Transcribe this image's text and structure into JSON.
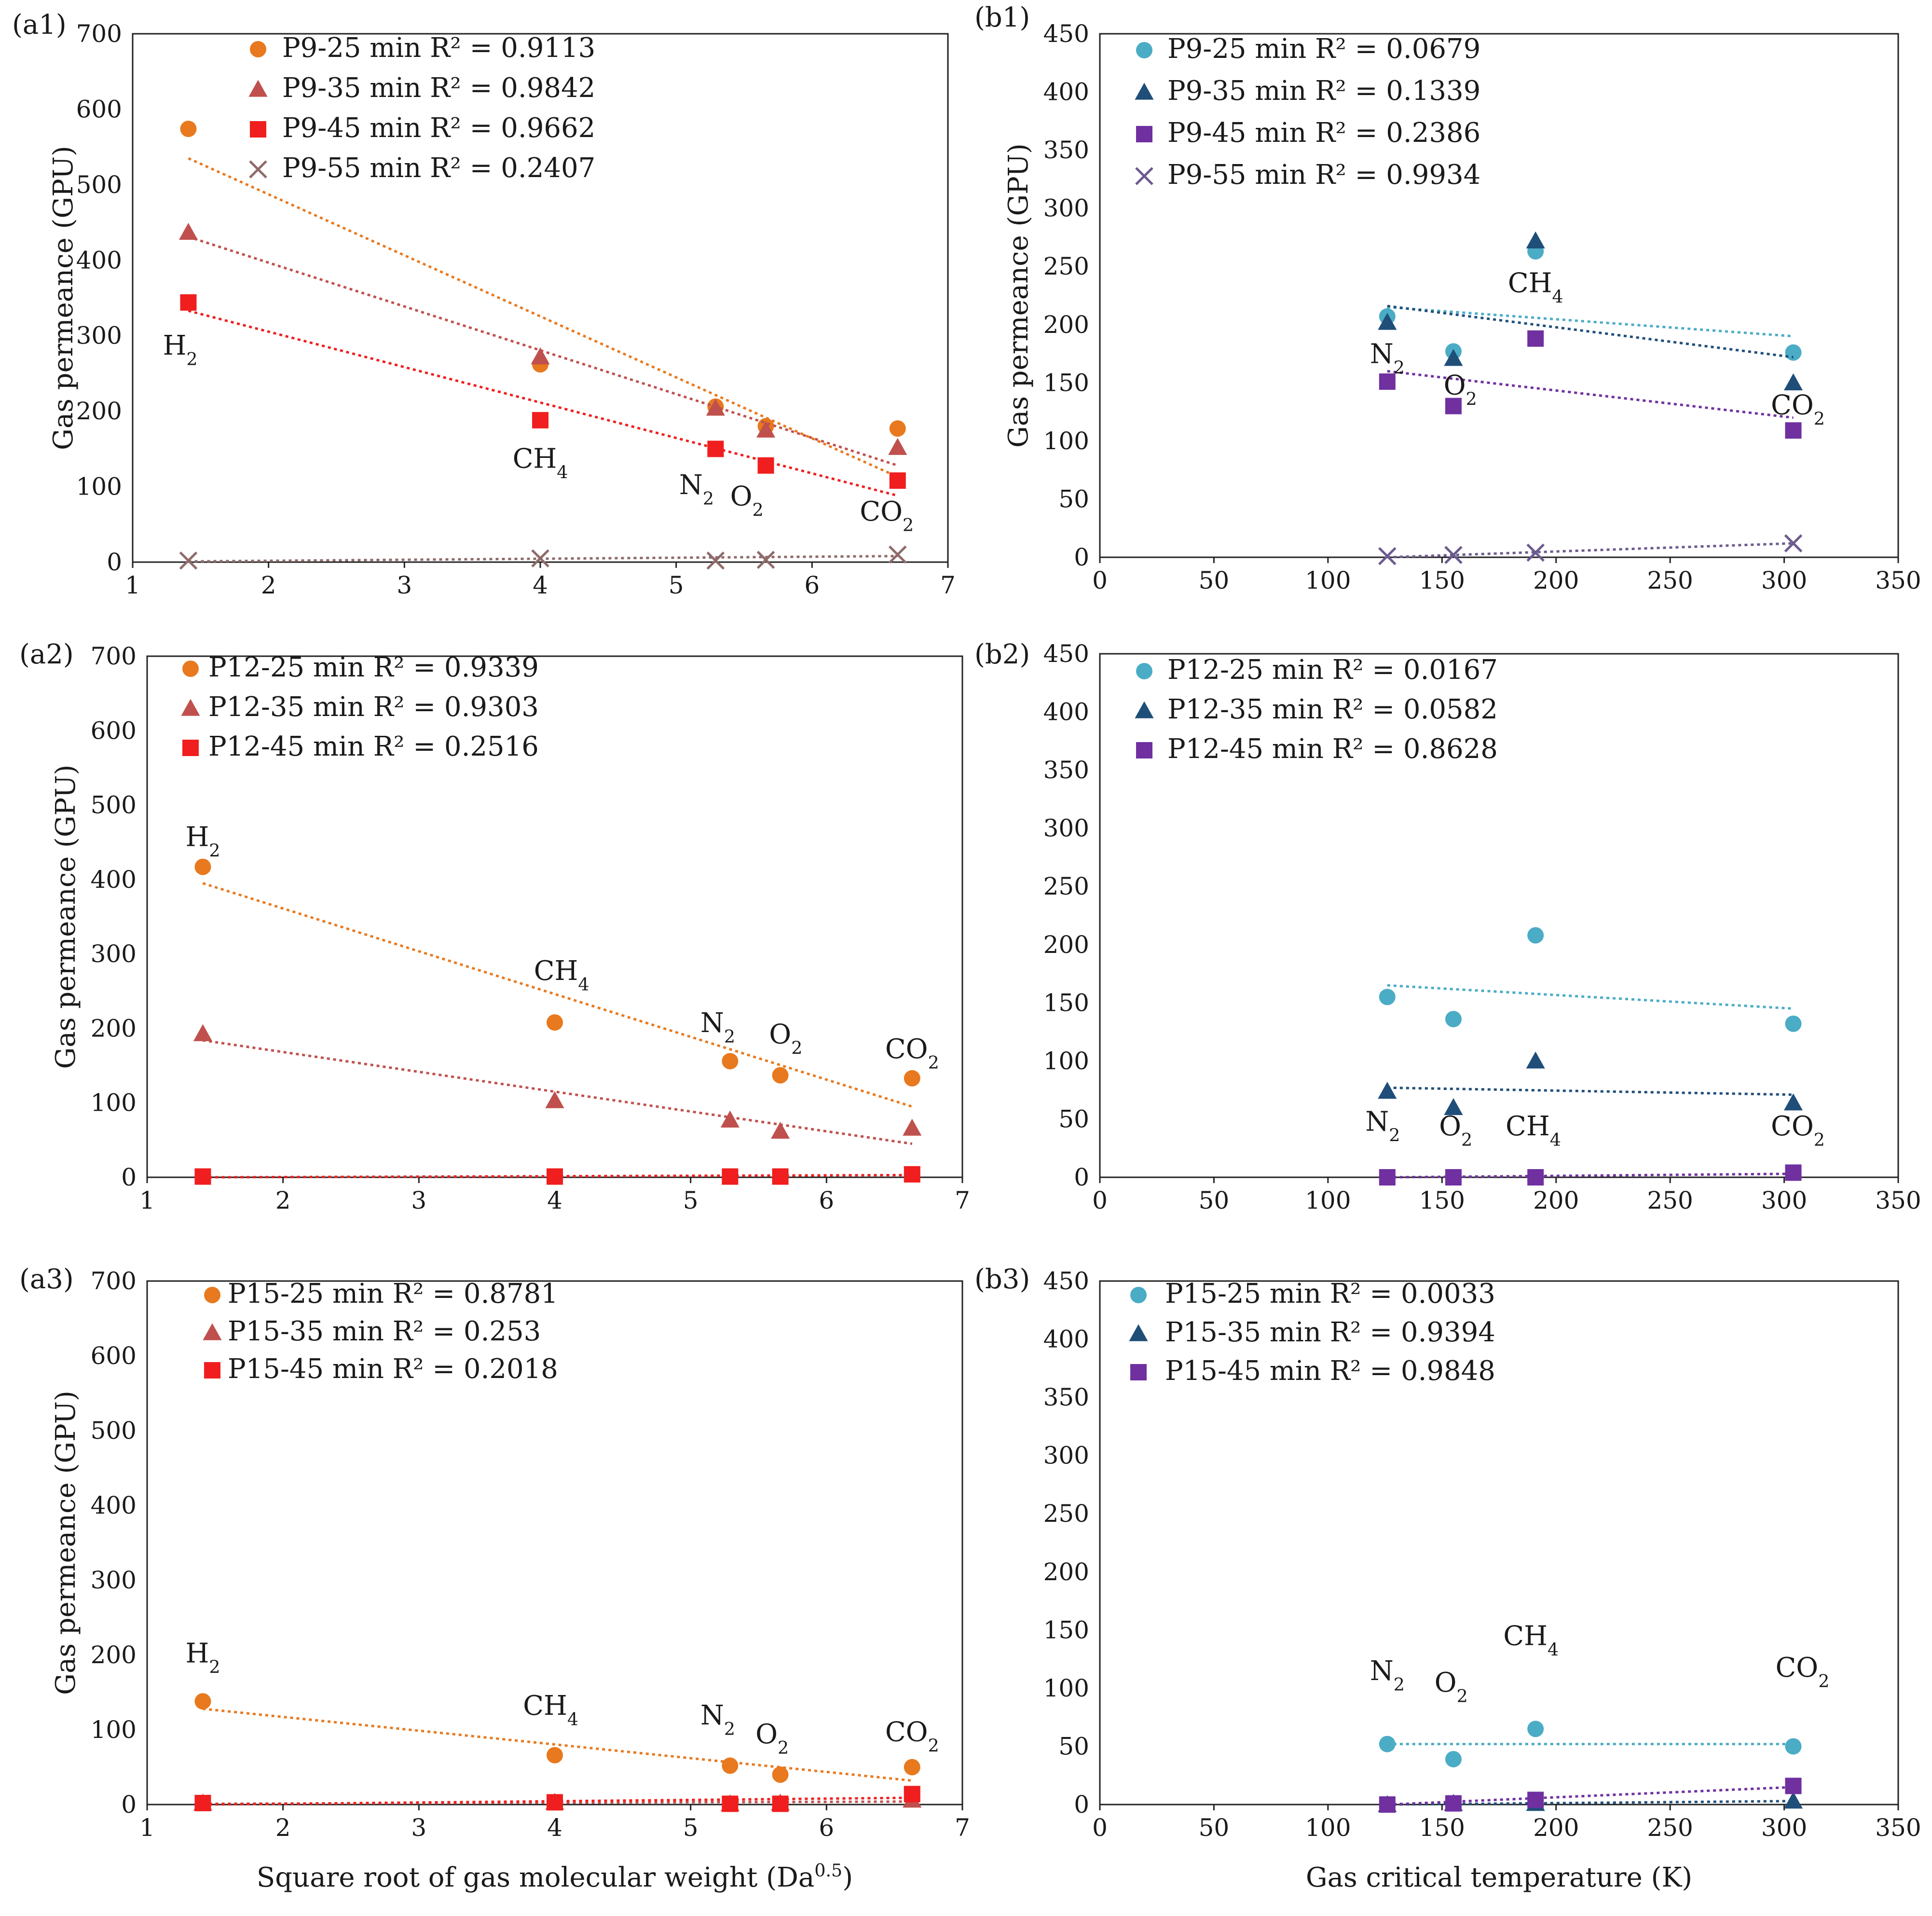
{
  "figure": {
    "colors": {
      "orange": "#E8791E",
      "salmon": "#C0504D",
      "red": "#F01E1E",
      "brownx": "#8F6A6A",
      "lightblue": "#4BACC6",
      "navy": "#1F4E79",
      "purple": "#7030A0",
      "purplex": "#6B5A8E"
    },
    "gas_labels": [
      "H2",
      "CH4",
      "N2",
      "O2",
      "CO2"
    ]
  },
  "chart_data": [
    {
      "id": "a1",
      "panel_label": "(a1)",
      "type": "scatter",
      "xlabel": "",
      "ylabel": "Gas permeance (GPU)",
      "xlim": [
        1,
        7
      ],
      "ylim": [
        0,
        700
      ],
      "xticks": [
        1,
        2,
        3,
        4,
        5,
        6,
        7
      ],
      "yticks": [
        0,
        100,
        200,
        300,
        400,
        500,
        600,
        700
      ],
      "series": [
        {
          "name": "P9-25 min",
          "r2": "R² = 0.9113",
          "marker": "circle",
          "color": "#E8791E",
          "x": [
            1.41,
            4.0,
            5.29,
            5.66,
            6.63
          ],
          "y": [
            574,
            262,
            206,
            180,
            177
          ],
          "trend": [
            [
              1.41,
              535
            ],
            [
              6.63,
              113
            ]
          ]
        },
        {
          "name": "P9-35 min",
          "r2": "R² = 0.9842",
          "marker": "triangle",
          "color": "#C0504D",
          "x": [
            1.41,
            4.0,
            5.29,
            5.66,
            6.63
          ],
          "y": [
            437,
            272,
            204,
            175,
            152
          ],
          "trend": [
            [
              1.41,
              431
            ],
            [
              6.63,
              128
            ]
          ]
        },
        {
          "name": "P9-45 min",
          "r2": "R² = 0.9662",
          "marker": "square",
          "color": "#F01E1E",
          "x": [
            1.41,
            4.0,
            5.29,
            5.66,
            6.63
          ],
          "y": [
            344,
            188,
            150,
            128,
            108
          ],
          "trend": [
            [
              1.41,
              333
            ],
            [
              6.63,
              88
            ]
          ]
        },
        {
          "name": "P9-55 min",
          "r2": "R² = 0.2407",
          "marker": "x",
          "color": "#8F6A6A",
          "x": [
            1.41,
            4.0,
            5.29,
            5.66,
            6.63
          ],
          "y": [
            2,
            5,
            2,
            3,
            10
          ],
          "trend": [
            [
              1.41,
              1
            ],
            [
              6.63,
              8
            ]
          ]
        }
      ],
      "annotations": [
        {
          "text": "H2",
          "x": 1.35,
          "y": 275
        },
        {
          "text": "CH4",
          "x": 4.0,
          "y": 125
        },
        {
          "text": "N2",
          "x": 5.15,
          "y": 90
        },
        {
          "text": "O2",
          "x": 5.52,
          "y": 75
        },
        {
          "text": "CO2",
          "x": 6.55,
          "y": 55
        }
      ]
    },
    {
      "id": "b1",
      "panel_label": "(b1)",
      "type": "scatter",
      "xlabel": "",
      "ylabel": "Gas permeance (GPU)",
      "xlim": [
        0,
        350
      ],
      "ylim": [
        0,
        450
      ],
      "xticks": [
        0,
        50,
        100,
        150,
        200,
        250,
        300,
        350
      ],
      "yticks": [
        0,
        50,
        100,
        150,
        200,
        250,
        300,
        350,
        400,
        450
      ],
      "series": [
        {
          "name": "P9-25 min",
          "r2": "R² = 0.0679",
          "marker": "circle",
          "color": "#4BACC6",
          "x": [
            126,
            155,
            191,
            304
          ],
          "y": [
            207,
            177,
            263,
            176
          ],
          "trend": [
            [
              126,
              215
            ],
            [
              304,
              190
            ]
          ]
        },
        {
          "name": "P9-35 min",
          "r2": "R² = 0.1339",
          "marker": "triangle",
          "color": "#1F4E79",
          "x": [
            126,
            155,
            191,
            304
          ],
          "y": [
            202,
            171,
            272,
            150
          ],
          "trend": [
            [
              126,
              216
            ],
            [
              304,
              172
            ]
          ]
        },
        {
          "name": "P9-45 min",
          "r2": "R² = 0.2386",
          "marker": "square",
          "color": "#7030A0",
          "x": [
            126,
            155,
            191,
            304
          ],
          "y": [
            151,
            130,
            188,
            109
          ],
          "trend": [
            [
              126,
              160
            ],
            [
              304,
              120
            ]
          ]
        },
        {
          "name": "P9-55 min",
          "r2": "R² = 0.9934",
          "marker": "x",
          "color": "#6B5A8E",
          "x": [
            126,
            155,
            191,
            304
          ],
          "y": [
            1,
            2,
            4,
            12
          ],
          "trend": [
            [
              126,
              0
            ],
            [
              304,
              12
            ]
          ]
        }
      ],
      "annotations": [
        {
          "text": "CH4",
          "x": 191,
          "y": 228
        },
        {
          "text": "N2",
          "x": 126,
          "y": 167
        },
        {
          "text": "O2",
          "x": 158,
          "y": 140
        },
        {
          "text": "CO2",
          "x": 306,
          "y": 123
        }
      ]
    },
    {
      "id": "a2",
      "panel_label": "(a2)",
      "type": "scatter",
      "xlabel": "",
      "ylabel": "Gas permeance (GPU)",
      "xlim": [
        1,
        7
      ],
      "ylim": [
        0,
        700
      ],
      "xticks": [
        1,
        2,
        3,
        4,
        5,
        6,
        7
      ],
      "yticks": [
        0,
        100,
        200,
        300,
        400,
        500,
        600,
        700
      ],
      "series": [
        {
          "name": "P12-25 min",
          "r2": "R² = 0.9339",
          "marker": "circle",
          "color": "#E8791E",
          "x": [
            1.41,
            4.0,
            5.29,
            5.66,
            6.63
          ],
          "y": [
            417,
            208,
            156,
            137,
            133
          ],
          "trend": [
            [
              1.41,
              395
            ],
            [
              6.63,
              95
            ]
          ]
        },
        {
          "name": "P12-35 min",
          "r2": "R² = 0.9303",
          "marker": "triangle",
          "color": "#C0504D",
          "x": [
            1.41,
            4.0,
            5.29,
            5.66,
            6.63
          ],
          "y": [
            193,
            103,
            77,
            62,
            66
          ],
          "trend": [
            [
              1.41,
              184
            ],
            [
              6.63,
              45
            ]
          ]
        },
        {
          "name": "P12-45 min",
          "r2": "R² = 0.2516",
          "marker": "square",
          "color": "#F01E1E",
          "x": [
            1.41,
            4.0,
            5.29,
            5.66,
            6.63
          ],
          "y": [
            1,
            1,
            1,
            1,
            4
          ],
          "trend": [
            [
              1.41,
              0
            ],
            [
              6.63,
              3
            ]
          ]
        }
      ],
      "annotations": [
        {
          "text": "H2",
          "x": 1.41,
          "y": 445
        },
        {
          "text": "CH4",
          "x": 4.05,
          "y": 265
        },
        {
          "text": "N2",
          "x": 5.2,
          "y": 195
        },
        {
          "text": "O2",
          "x": 5.7,
          "y": 180
        },
        {
          "text": "CO2",
          "x": 6.63,
          "y": 160
        }
      ]
    },
    {
      "id": "b2",
      "panel_label": "(b2)",
      "type": "scatter",
      "xlabel": "",
      "ylabel": "",
      "xlim": [
        0,
        350
      ],
      "ylim": [
        0,
        450
      ],
      "xticks": [
        0,
        50,
        100,
        150,
        200,
        250,
        300,
        350
      ],
      "yticks": [
        0,
        50,
        100,
        150,
        200,
        250,
        300,
        350,
        400,
        450
      ],
      "series": [
        {
          "name": "P12-25 min",
          "r2": "R² = 0.0167",
          "marker": "circle",
          "color": "#4BACC6",
          "x": [
            126,
            155,
            191,
            304
          ],
          "y": [
            155,
            136,
            208,
            132
          ],
          "trend": [
            [
              126,
              165
            ],
            [
              304,
              145
            ]
          ]
        },
        {
          "name": "P12-35 min",
          "r2": "R² = 0.0582",
          "marker": "triangle",
          "color": "#1F4E79",
          "x": [
            126,
            155,
            191,
            304
          ],
          "y": [
            74,
            60,
            100,
            64
          ],
          "trend": [
            [
              126,
              77
            ],
            [
              304,
              71
            ]
          ]
        },
        {
          "name": "P12-45 min",
          "r2": "R² = 0.8628",
          "marker": "square",
          "color": "#7030A0",
          "x": [
            126,
            155,
            191,
            304
          ],
          "y": [
            0,
            0,
            0,
            4
          ],
          "trend": [
            [
              126,
              0
            ],
            [
              304,
              3
            ]
          ]
        }
      ],
      "annotations": [
        {
          "text": "N2",
          "x": 124,
          "y": 40
        },
        {
          "text": "O2",
          "x": 156,
          "y": 36
        },
        {
          "text": "CH4",
          "x": 190,
          "y": 36
        },
        {
          "text": "CO2",
          "x": 306,
          "y": 36
        }
      ]
    },
    {
      "id": "a3",
      "panel_label": "(a3)",
      "type": "scatter",
      "xlabel": "Square root of  gas molecular weight (Da0.5)",
      "ylabel": "Gas permeance (GPU)",
      "xlim": [
        1,
        7
      ],
      "ylim": [
        0,
        700
      ],
      "xticks": [
        1,
        2,
        3,
        4,
        5,
        6,
        7
      ],
      "yticks": [
        0,
        100,
        200,
        300,
        400,
        500,
        600,
        700
      ],
      "series": [
        {
          "name": "P15-25 min",
          "r2": "R² = 0.8781",
          "marker": "circle",
          "color": "#E8791E",
          "x": [
            1.41,
            4.0,
            5.29,
            5.66,
            6.63
          ],
          "y": [
            138,
            66,
            52,
            40,
            50
          ],
          "trend": [
            [
              1.41,
              128
            ],
            [
              6.63,
              32
            ]
          ]
        },
        {
          "name": "P15-35 min",
          "r2": "R² = 0.253",
          "marker": "triangle",
          "color": "#C0504D",
          "x": [
            1.41,
            4.0,
            5.29,
            5.66,
            6.63
          ],
          "y": [
            2,
            3,
            1,
            2,
            6
          ],
          "trend": [
            [
              1.41,
              1
            ],
            [
              6.63,
              4
            ]
          ]
        },
        {
          "name": "P15-45 min",
          "r2": "R² = 0.2018",
          "marker": "square",
          "color": "#F01E1E",
          "x": [
            1.41,
            4.0,
            5.29,
            5.66,
            6.63
          ],
          "y": [
            2,
            3,
            1,
            1,
            14
          ],
          "trend": [
            [
              1.41,
              0
            ],
            [
              6.63,
              9
            ]
          ]
        }
      ],
      "annotations": [
        {
          "text": "H2",
          "x": 1.41,
          "y": 190
        },
        {
          "text": "CH4",
          "x": 3.97,
          "y": 120
        },
        {
          "text": "N2",
          "x": 5.2,
          "y": 107
        },
        {
          "text": "O2",
          "x": 5.6,
          "y": 82
        },
        {
          "text": "CO2",
          "x": 6.63,
          "y": 85
        }
      ]
    },
    {
      "id": "b3",
      "panel_label": "(b3)",
      "type": "scatter",
      "xlabel": "Gas critical temperature (K)",
      "ylabel": "",
      "xlim": [
        0,
        350
      ],
      "ylim": [
        0,
        450
      ],
      "xticks": [
        0,
        50,
        100,
        150,
        200,
        250,
        300,
        350
      ],
      "yticks": [
        0,
        50,
        100,
        150,
        200,
        250,
        300,
        350,
        400,
        450
      ],
      "series": [
        {
          "name": "P15-25 min",
          "r2": "R² = 0.0033",
          "marker": "circle",
          "color": "#4BACC6",
          "x": [
            126,
            155,
            191,
            304
          ],
          "y": [
            52,
            39,
            65,
            50
          ],
          "trend": [
            [
              126,
              52
            ],
            [
              304,
              52
            ]
          ]
        },
        {
          "name": "P15-35 min",
          "r2": "R² = 0.9394",
          "marker": "triangle",
          "color": "#1F4E79",
          "x": [
            126,
            155,
            191,
            304
          ],
          "y": [
            0,
            1,
            1,
            3
          ],
          "trend": [
            [
              126,
              0
            ],
            [
              304,
              3
            ]
          ]
        },
        {
          "name": "P15-45 min",
          "r2": "R² = 0.9848",
          "marker": "square",
          "color": "#7030A0",
          "x": [
            126,
            155,
            191,
            304
          ],
          "y": [
            0,
            1,
            4,
            16
          ],
          "trend": [
            [
              126,
              0
            ],
            [
              304,
              15
            ]
          ]
        }
      ],
      "annotations": [
        {
          "text": "N2",
          "x": 126,
          "y": 107
        },
        {
          "text": "O2",
          "x": 154,
          "y": 97
        },
        {
          "text": "CH4",
          "x": 189,
          "y": 137
        },
        {
          "text": "CO2",
          "x": 308,
          "y": 110
        }
      ]
    }
  ]
}
